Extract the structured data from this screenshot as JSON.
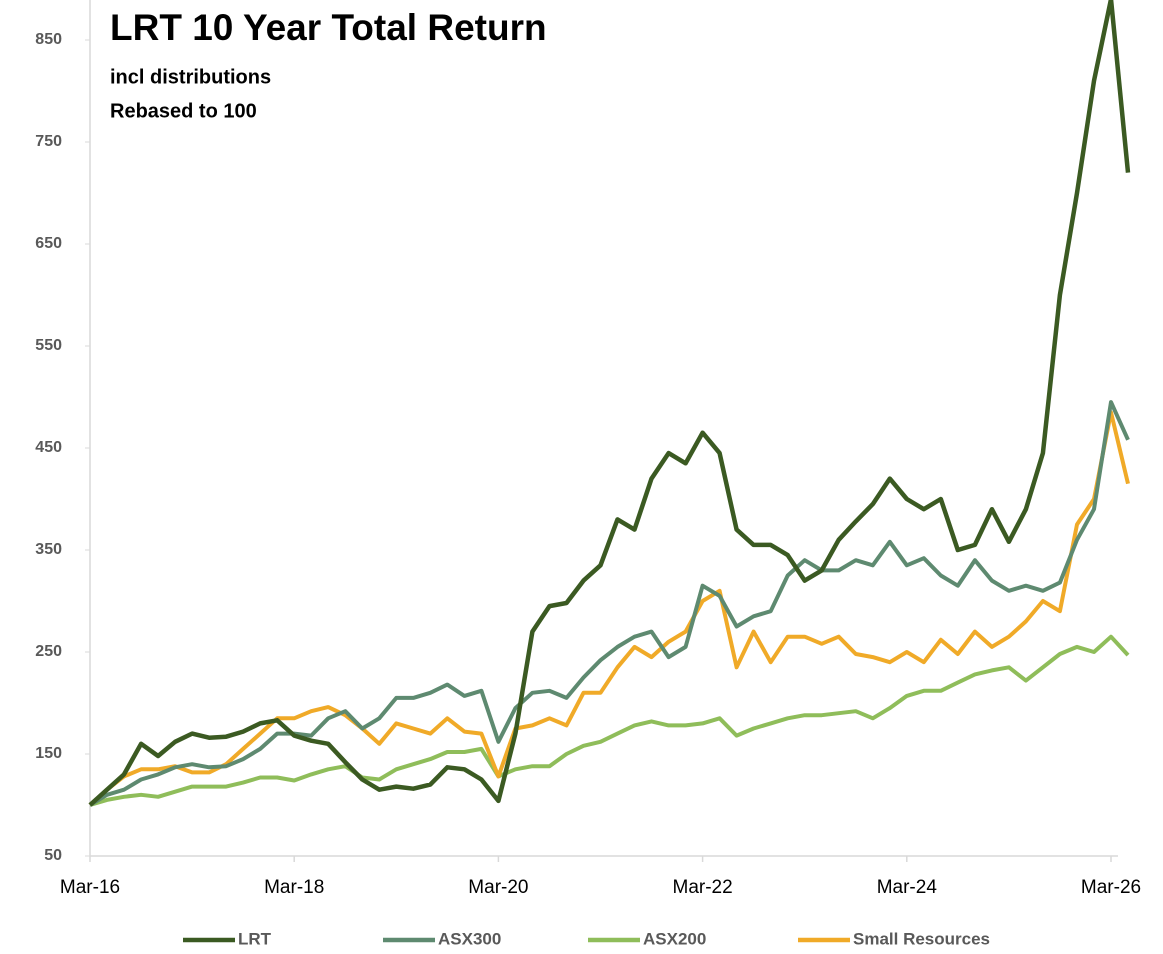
{
  "chart_data": {
    "type": "line",
    "title": "LRT 10 Year Total Return",
    "subtitle": [
      "incl distributions",
      "Rebased to 100"
    ],
    "categories": [
      "Mar-16",
      null,
      null,
      null,
      null,
      null,
      null,
      null,
      null,
      null,
      null,
      null,
      "Mar-18",
      null,
      null,
      null,
      null,
      null,
      null,
      null,
      null,
      null,
      null,
      null,
      "Mar-20",
      null,
      null,
      null,
      null,
      null,
      null,
      null,
      null,
      null,
      null,
      null,
      "Mar-22",
      null,
      null,
      null,
      null,
      null,
      null,
      null,
      null,
      null,
      null,
      null,
      "Mar-24",
      null,
      null,
      null,
      null,
      null,
      null,
      null,
      null,
      null,
      null,
      null,
      "Mar-26",
      null
    ],
    "series": [
      {
        "name": "LRT",
        "color": "#3b5a22",
        "values": [
          100,
          115,
          130,
          160,
          148,
          162,
          170,
          166,
          167,
          172,
          180,
          183,
          168,
          163,
          160,
          142,
          125,
          115,
          118,
          116,
          120,
          137,
          135,
          125,
          104,
          170,
          270,
          295,
          298,
          320,
          335,
          380,
          370,
          420,
          445,
          435,
          465,
          445,
          370,
          355,
          355,
          345,
          320,
          330,
          360,
          378,
          395,
          420,
          400,
          390,
          400,
          350,
          355,
          390,
          358,
          390,
          445,
          600,
          700,
          810,
          890,
          720
        ]
      },
      {
        "name": "ASX300",
        "color": "#5e8a70",
        "values": [
          100,
          110,
          115,
          125,
          130,
          137,
          140,
          137,
          138,
          145,
          155,
          170,
          170,
          168,
          185,
          192,
          175,
          185,
          205,
          205,
          210,
          218,
          207,
          212,
          162,
          195,
          210,
          212,
          205,
          225,
          242,
          255,
          265,
          270,
          245,
          255,
          315,
          305,
          275,
          285,
          290,
          325,
          340,
          330,
          330,
          340,
          335,
          358,
          335,
          342,
          325,
          315,
          340,
          320,
          310,
          315,
          310,
          318,
          360,
          390,
          495,
          458
        ]
      },
      {
        "name": "ASX200",
        "color": "#8fbd5a",
        "values": [
          100,
          105,
          108,
          110,
          108,
          113,
          118,
          118,
          118,
          122,
          127,
          127,
          124,
          130,
          135,
          138,
          127,
          125,
          135,
          140,
          145,
          152,
          152,
          155,
          128,
          135,
          138,
          138,
          150,
          158,
          162,
          170,
          178,
          182,
          178,
          178,
          180,
          185,
          168,
          175,
          180,
          185,
          188,
          188,
          190,
          192,
          185,
          195,
          207,
          212,
          212,
          220,
          228,
          232,
          235,
          222,
          235,
          248,
          255,
          250,
          265,
          247
        ]
      },
      {
        "name": "Small Resources",
        "color": "#f0aa28",
        "values": [
          100,
          115,
          128,
          135,
          135,
          138,
          132,
          132,
          140,
          155,
          170,
          185,
          185,
          192,
          196,
          188,
          175,
          160,
          180,
          175,
          170,
          185,
          172,
          170,
          128,
          175,
          178,
          185,
          178,
          210,
          210,
          235,
          255,
          245,
          260,
          270,
          300,
          310,
          235,
          270,
          240,
          265,
          265,
          258,
          265,
          248,
          245,
          240,
          250,
          240,
          262,
          248,
          270,
          255,
          265,
          280,
          300,
          290,
          375,
          400,
          485,
          415
        ]
      }
    ],
    "ylim": [
      50,
      900
    ],
    "yticks": [
      50,
      150,
      250,
      350,
      450,
      550,
      650,
      750,
      850
    ],
    "legend": "bottom"
  }
}
